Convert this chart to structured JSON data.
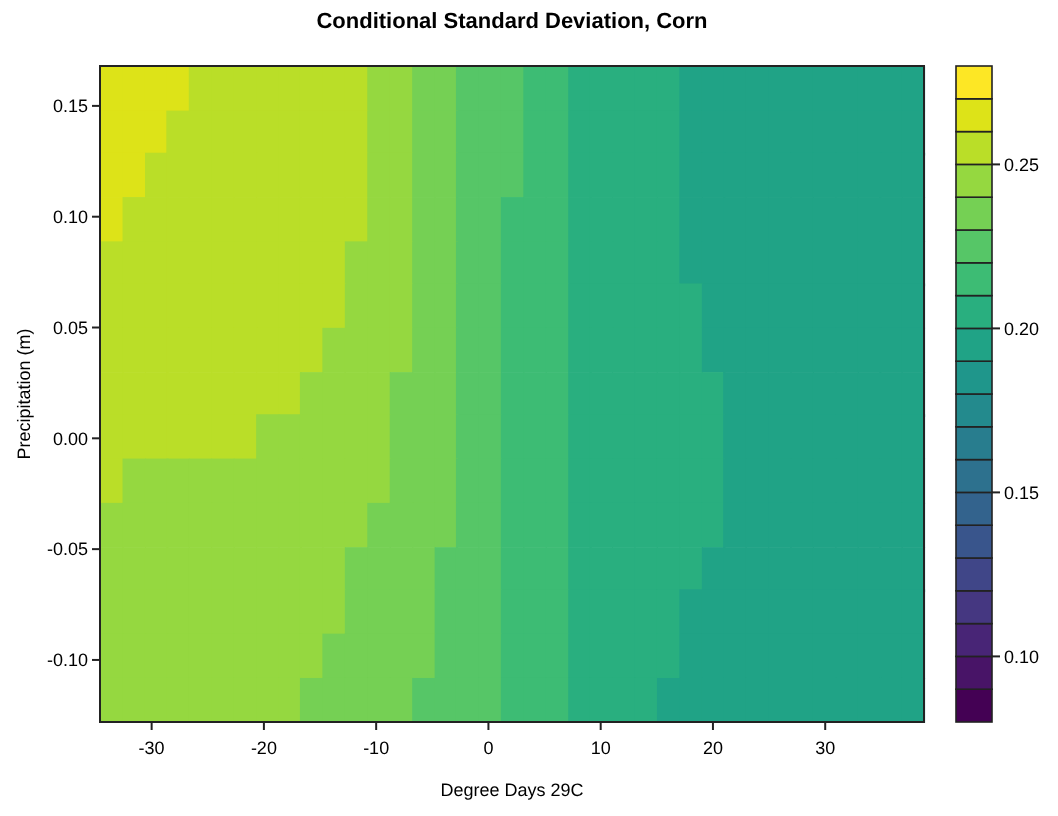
{
  "chart_data": {
    "type": "heatmap",
    "title": "Conditional Standard Deviation, Corn",
    "xlabel": "Degree Days 29C",
    "ylabel": "Precipitation (m)",
    "x": [
      -33.6,
      -31.6,
      -29.6,
      -27.7,
      -25.7,
      -23.7,
      -21.7,
      -19.7,
      -17.7,
      -15.8,
      -13.8,
      -11.8,
      -9.8,
      -7.8,
      -5.8,
      -3.8,
      -1.9,
      0.1,
      2.1,
      4.1,
      6.1,
      8.1,
      10.0,
      12.0,
      14.0,
      16.0,
      18.0,
      20.0,
      21.9,
      23.9,
      25.9,
      27.9,
      29.9,
      31.9,
      33.9,
      35.8,
      37.8
    ],
    "y": [
      0.158,
      0.138,
      0.119,
      0.099,
      0.079,
      0.06,
      0.04,
      0.02,
      0.001,
      -0.019,
      -0.039,
      -0.059,
      -0.078,
      -0.098,
      -0.118
    ],
    "xlim": [
      -34.6,
      38.8
    ],
    "xticks": [
      -30,
      -20,
      -10,
      0,
      10,
      20,
      30
    ],
    "ylim": [
      -0.128,
      0.168
    ],
    "yticks": [
      {
        "value": -0.1,
        "label": "-0.10"
      },
      {
        "value": -0.05,
        "label": "-0.05"
      },
      {
        "value": 0,
        "label": "0.00"
      },
      {
        "value": 0.05,
        "label": "0.05"
      },
      {
        "value": 0.1,
        "label": "0.10"
      },
      {
        "value": 0.15,
        "label": "0.15"
      }
    ],
    "clim": [
      0.08,
      0.28
    ],
    "cticks": [
      {
        "value": 0.1,
        "label": "0.10"
      },
      0.15,
      {
        "value": 0.2,
        "label": "0.20"
      },
      0.25
    ],
    "cells": [
      [
        0.265,
        0.265,
        0.265,
        0.265,
        0.255,
        0.255,
        0.255,
        0.255,
        0.255,
        0.255,
        0.255,
        0.255,
        0.245,
        0.245,
        0.235,
        0.235,
        0.225,
        0.225,
        0.225,
        0.215,
        0.215,
        0.205,
        0.205,
        0.205,
        0.205,
        0.205,
        0.195,
        0.195,
        0.195,
        0.195,
        0.195,
        0.195,
        0.195,
        0.195,
        0.195,
        0.195,
        0.195
      ],
      [
        0.265,
        0.265,
        0.265,
        0.255,
        0.255,
        0.255,
        0.255,
        0.255,
        0.255,
        0.255,
        0.255,
        0.255,
        0.245,
        0.245,
        0.235,
        0.235,
        0.225,
        0.225,
        0.225,
        0.215,
        0.215,
        0.205,
        0.205,
        0.205,
        0.205,
        0.205,
        0.195,
        0.195,
        0.195,
        0.195,
        0.195,
        0.195,
        0.195,
        0.195,
        0.195,
        0.195,
        0.195
      ],
      [
        0.265,
        0.265,
        0.255,
        0.255,
        0.255,
        0.255,
        0.255,
        0.255,
        0.255,
        0.255,
        0.255,
        0.255,
        0.245,
        0.245,
        0.235,
        0.235,
        0.225,
        0.225,
        0.225,
        0.215,
        0.215,
        0.205,
        0.205,
        0.205,
        0.205,
        0.205,
        0.195,
        0.195,
        0.195,
        0.195,
        0.195,
        0.195,
        0.195,
        0.195,
        0.195,
        0.195,
        0.195
      ],
      [
        0.265,
        0.255,
        0.255,
        0.255,
        0.255,
        0.255,
        0.255,
        0.255,
        0.255,
        0.255,
        0.255,
        0.255,
        0.245,
        0.245,
        0.235,
        0.235,
        0.225,
        0.225,
        0.215,
        0.215,
        0.215,
        0.205,
        0.205,
        0.205,
        0.205,
        0.205,
        0.195,
        0.195,
        0.195,
        0.195,
        0.195,
        0.195,
        0.195,
        0.195,
        0.195,
        0.195,
        0.195
      ],
      [
        0.255,
        0.255,
        0.255,
        0.255,
        0.255,
        0.255,
        0.255,
        0.255,
        0.255,
        0.255,
        0.255,
        0.245,
        0.245,
        0.245,
        0.235,
        0.235,
        0.225,
        0.225,
        0.215,
        0.215,
        0.215,
        0.205,
        0.205,
        0.205,
        0.205,
        0.205,
        0.195,
        0.195,
        0.195,
        0.195,
        0.195,
        0.195,
        0.195,
        0.195,
        0.195,
        0.195,
        0.195
      ],
      [
        0.255,
        0.255,
        0.255,
        0.255,
        0.255,
        0.255,
        0.255,
        0.255,
        0.255,
        0.255,
        0.255,
        0.245,
        0.245,
        0.245,
        0.235,
        0.235,
        0.225,
        0.225,
        0.215,
        0.215,
        0.215,
        0.205,
        0.205,
        0.205,
        0.205,
        0.205,
        0.205,
        0.195,
        0.195,
        0.195,
        0.195,
        0.195,
        0.195,
        0.195,
        0.195,
        0.195,
        0.195
      ],
      [
        0.255,
        0.255,
        0.255,
        0.255,
        0.255,
        0.255,
        0.255,
        0.255,
        0.255,
        0.255,
        0.245,
        0.245,
        0.245,
        0.245,
        0.235,
        0.235,
        0.225,
        0.225,
        0.215,
        0.215,
        0.215,
        0.205,
        0.205,
        0.205,
        0.205,
        0.205,
        0.205,
        0.195,
        0.195,
        0.195,
        0.195,
        0.195,
        0.195,
        0.195,
        0.195,
        0.195,
        0.195
      ],
      [
        0.255,
        0.255,
        0.255,
        0.255,
        0.255,
        0.255,
        0.255,
        0.255,
        0.255,
        0.245,
        0.245,
        0.245,
        0.245,
        0.235,
        0.235,
        0.235,
        0.225,
        0.225,
        0.215,
        0.215,
        0.215,
        0.205,
        0.205,
        0.205,
        0.205,
        0.205,
        0.205,
        0.205,
        0.195,
        0.195,
        0.195,
        0.195,
        0.195,
        0.195,
        0.195,
        0.195,
        0.195
      ],
      [
        0.255,
        0.255,
        0.255,
        0.255,
        0.255,
        0.255,
        0.255,
        0.245,
        0.245,
        0.245,
        0.245,
        0.245,
        0.245,
        0.235,
        0.235,
        0.235,
        0.225,
        0.225,
        0.215,
        0.215,
        0.215,
        0.205,
        0.205,
        0.205,
        0.205,
        0.205,
        0.205,
        0.205,
        0.195,
        0.195,
        0.195,
        0.195,
        0.195,
        0.195,
        0.195,
        0.195,
        0.195
      ],
      [
        0.255,
        0.245,
        0.245,
        0.245,
        0.245,
        0.245,
        0.245,
        0.245,
        0.245,
        0.245,
        0.245,
        0.245,
        0.245,
        0.235,
        0.235,
        0.235,
        0.225,
        0.225,
        0.215,
        0.215,
        0.215,
        0.205,
        0.205,
        0.205,
        0.205,
        0.205,
        0.205,
        0.205,
        0.195,
        0.195,
        0.195,
        0.195,
        0.195,
        0.195,
        0.195,
        0.195,
        0.195
      ],
      [
        0.245,
        0.245,
        0.245,
        0.245,
        0.245,
        0.245,
        0.245,
        0.245,
        0.245,
        0.245,
        0.245,
        0.245,
        0.235,
        0.235,
        0.235,
        0.235,
        0.225,
        0.225,
        0.215,
        0.215,
        0.215,
        0.205,
        0.205,
        0.205,
        0.205,
        0.205,
        0.205,
        0.205,
        0.195,
        0.195,
        0.195,
        0.195,
        0.195,
        0.195,
        0.195,
        0.195,
        0.195
      ],
      [
        0.245,
        0.245,
        0.245,
        0.245,
        0.245,
        0.245,
        0.245,
        0.245,
        0.245,
        0.245,
        0.245,
        0.235,
        0.235,
        0.235,
        0.235,
        0.225,
        0.225,
        0.225,
        0.215,
        0.215,
        0.215,
        0.205,
        0.205,
        0.205,
        0.205,
        0.205,
        0.205,
        0.195,
        0.195,
        0.195,
        0.195,
        0.195,
        0.195,
        0.195,
        0.195,
        0.195,
        0.195
      ],
      [
        0.245,
        0.245,
        0.245,
        0.245,
        0.245,
        0.245,
        0.245,
        0.245,
        0.245,
        0.245,
        0.245,
        0.235,
        0.235,
        0.235,
        0.235,
        0.225,
        0.225,
        0.225,
        0.215,
        0.215,
        0.215,
        0.205,
        0.205,
        0.205,
        0.205,
        0.205,
        0.195,
        0.195,
        0.195,
        0.195,
        0.195,
        0.195,
        0.195,
        0.195,
        0.195,
        0.195,
        0.195
      ],
      [
        0.245,
        0.245,
        0.245,
        0.245,
        0.245,
        0.245,
        0.245,
        0.245,
        0.245,
        0.245,
        0.235,
        0.235,
        0.235,
        0.235,
        0.235,
        0.225,
        0.225,
        0.225,
        0.215,
        0.215,
        0.215,
        0.205,
        0.205,
        0.205,
        0.205,
        0.205,
        0.195,
        0.195,
        0.195,
        0.195,
        0.195,
        0.195,
        0.195,
        0.195,
        0.195,
        0.195,
        0.195
      ],
      [
        0.245,
        0.245,
        0.245,
        0.245,
        0.245,
        0.245,
        0.245,
        0.245,
        0.245,
        0.235,
        0.235,
        0.235,
        0.235,
        0.235,
        0.225,
        0.225,
        0.225,
        0.225,
        0.215,
        0.215,
        0.215,
        0.205,
        0.205,
        0.205,
        0.205,
        0.195,
        0.195,
        0.195,
        0.195,
        0.195,
        0.195,
        0.195,
        0.195,
        0.195,
        0.195,
        0.195,
        0.195
      ]
    ]
  }
}
